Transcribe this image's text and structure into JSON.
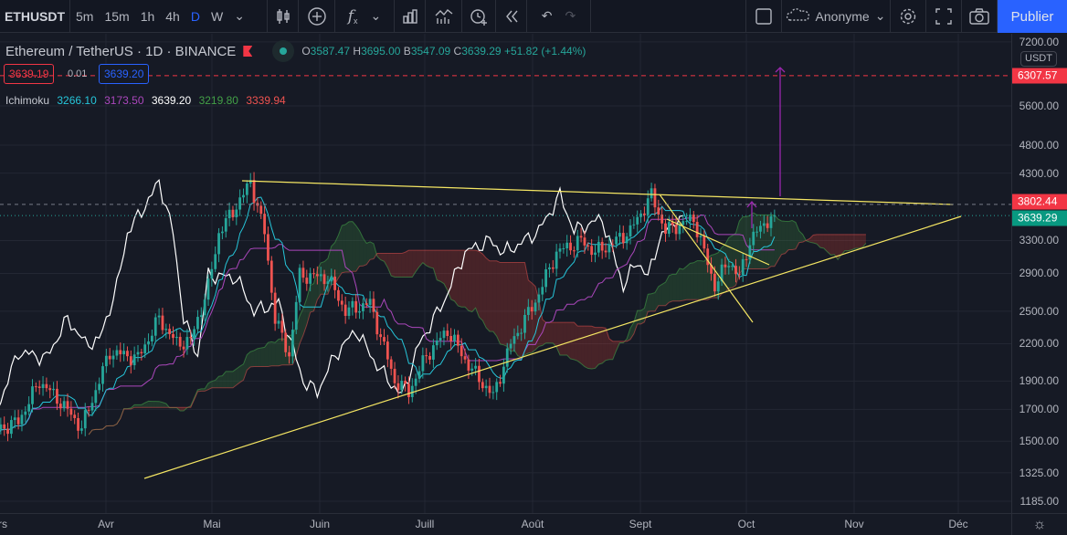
{
  "toolbar": {
    "symbol": "ETHUSDT",
    "intervals": [
      "5m",
      "15m",
      "1h",
      "4h",
      "D",
      "W"
    ],
    "active_interval": "D",
    "user": "Anonyme",
    "publish_label": "Publier"
  },
  "legend": {
    "title": "Ethereum / TetherUS · 1D · BINANCE",
    "open_label": "O",
    "open": "3587.47",
    "high_label": "H",
    "high": "3695.00",
    "low_label": "B",
    "low": "3547.09",
    "close_label": "C",
    "close": "3639.29",
    "change": "+51.82 (+1.44%)",
    "bid": "3639.19",
    "spread": "0.01",
    "ask": "3639.20"
  },
  "ichimoku": {
    "label": "Ichimoku",
    "values": [
      "3266.10",
      "3173.50",
      "3639.20",
      "3219.80",
      "3339.94"
    ],
    "colors": [
      "#26c6da",
      "#ab47bc",
      "#ffffff",
      "#43a047",
      "#ef5350"
    ]
  },
  "price_axis": {
    "currency": "USDT",
    "ticks": [
      "7200.00",
      "5600.00",
      "4800.00",
      "4300.00",
      "3300.00",
      "2900.00",
      "2500.00",
      "2200.00",
      "1900.00",
      "1700.00",
      "1500.00",
      "1325.00",
      "1185.00"
    ],
    "tags": [
      {
        "label": "6307.57",
        "color": "#f23645"
      },
      {
        "label": "3802.44",
        "color": "#f23645"
      },
      {
        "label": "3639.29",
        "color": "#089981"
      }
    ]
  },
  "time_axis": {
    "labels": [
      "rs",
      "Avr",
      "Mai",
      "Juin",
      "Juill",
      "Août",
      "Sept",
      "Oct",
      "Nov",
      "Déc"
    ]
  },
  "colors": {
    "up": "#26a69a",
    "down": "#ef5350",
    "trendline": "#f5e663",
    "target": "#9c27b0"
  },
  "chart_data": {
    "type": "candlestick",
    "symbol": "ETHUSDT",
    "scale": "log",
    "price_range": [
      1150,
      7600
    ],
    "start_date": "2021-03-01",
    "key_closes": [
      [
        0,
        1570
      ],
      [
        6,
        1620
      ],
      [
        12,
        1900
      ],
      [
        18,
        1750
      ],
      [
        24,
        1580
      ],
      [
        32,
        2130
      ],
      [
        40,
        2080
      ],
      [
        46,
        2430
      ],
      [
        51,
        2200
      ],
      [
        55,
        2230
      ],
      [
        60,
        2750
      ],
      [
        63,
        3400
      ],
      [
        70,
        3950
      ],
      [
        72,
        4170
      ],
      [
        76,
        3400
      ],
      [
        79,
        2430
      ],
      [
        83,
        2100
      ],
      [
        86,
        2880
      ],
      [
        94,
        2850
      ],
      [
        99,
        2500
      ],
      [
        106,
        2580
      ],
      [
        113,
        1900
      ],
      [
        117,
        1820
      ],
      [
        122,
        2100
      ],
      [
        128,
        2320
      ],
      [
        134,
        2020
      ],
      [
        141,
        1790
      ],
      [
        146,
        2200
      ],
      [
        153,
        2600
      ],
      [
        159,
        3150
      ],
      [
        166,
        3300
      ],
      [
        170,
        3150
      ],
      [
        174,
        3240
      ],
      [
        180,
        3430
      ],
      [
        186,
        3940
      ],
      [
        190,
        3430
      ],
      [
        198,
        3600
      ],
      [
        204,
        2760
      ],
      [
        208,
        3050
      ],
      [
        211,
        2850
      ],
      [
        214,
        3300
      ],
      [
        219,
        3580
      ],
      [
        221,
        3639
      ]
    ],
    "target_price": 6307.57,
    "resistance_price": 3802.44,
    "last_price": 3639.29
  }
}
